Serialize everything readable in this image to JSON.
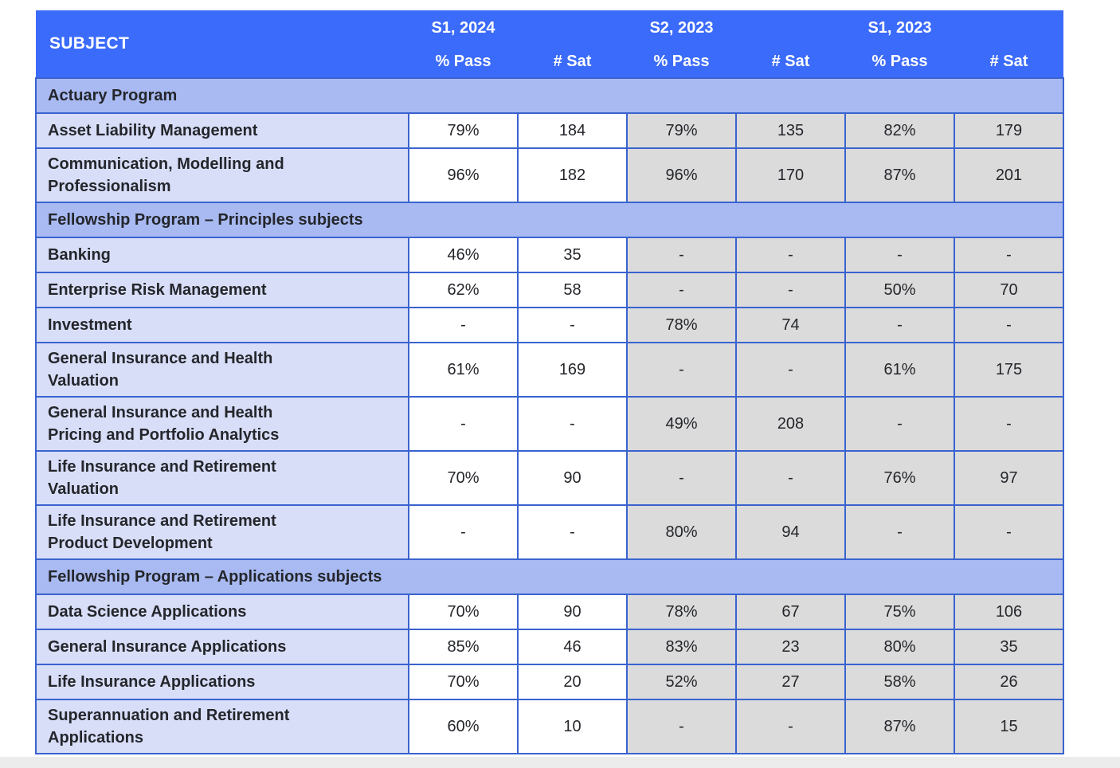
{
  "table": {
    "header": {
      "subject_label": "SUBJECT",
      "groups": [
        {
          "period": "S1, 2024",
          "cols": [
            "% Pass",
            "# Sat"
          ]
        },
        {
          "period": "S2, 2023",
          "cols": [
            "% Pass",
            "# Sat"
          ]
        },
        {
          "period": "S1, 2023",
          "cols": [
            "% Pass",
            "# Sat"
          ]
        }
      ]
    },
    "sections": [
      {
        "title": "Actuary Program",
        "rows": [
          {
            "subject": "Asset Liability Management",
            "values": [
              "79%",
              "184",
              "79%",
              "135",
              "82%",
              "179"
            ]
          },
          {
            "subject": "Communication, Modelling and Professionalism",
            "values": [
              "96%",
              "182",
              "96%",
              "170",
              "87%",
              "201"
            ]
          }
        ]
      },
      {
        "title": "Fellowship Program – Principles subjects",
        "rows": [
          {
            "subject": "Banking",
            "values": [
              "46%",
              "35",
              "-",
              "-",
              "-",
              "-"
            ]
          },
          {
            "subject": "Enterprise Risk Management",
            "values": [
              "62%",
              "58",
              "-",
              "-",
              "50%",
              "70"
            ]
          },
          {
            "subject": "Investment",
            "values": [
              "-",
              "-",
              "78%",
              "74",
              "-",
              "-"
            ]
          },
          {
            "subject": "General Insurance and Health Valuation",
            "values": [
              "61%",
              "169",
              "-",
              "-",
              "61%",
              "175"
            ]
          },
          {
            "subject": "General Insurance and Health Pricing and Portfolio Analytics",
            "values": [
              "-",
              "-",
              "49%",
              "208",
              "-",
              "-"
            ]
          },
          {
            "subject": "Life Insurance and Retirement Valuation",
            "values": [
              "70%",
              "90",
              "-",
              "-",
              "76%",
              "97"
            ]
          },
          {
            "subject": "Life Insurance and Retirement Product Development",
            "values": [
              "-",
              "-",
              "80%",
              "94",
              "-",
              "-"
            ]
          }
        ]
      },
      {
        "title": "Fellowship Program – Applications subjects",
        "rows": [
          {
            "subject": "Data Science Applications",
            "values": [
              "70%",
              "90",
              "78%",
              "67",
              "75%",
              "106"
            ]
          },
          {
            "subject": "General Insurance Applications",
            "values": [
              "85%",
              "46",
              "83%",
              "23",
              "80%",
              "35"
            ]
          },
          {
            "subject": "Life Insurance Applications",
            "values": [
              "70%",
              "20",
              "52%",
              "27",
              "58%",
              "26"
            ]
          },
          {
            "subject": "Superannuation and Retirement Applications",
            "values": [
              "60%",
              "10",
              "-",
              "-",
              "87%",
              "15"
            ]
          }
        ]
      }
    ]
  },
  "colors": {
    "header_bg": "#3B6BFA",
    "header_text": "#FFFFFF",
    "border": "#3A63CF",
    "section_bg": "#A9BAF2",
    "subject_bg": "#D8DEF8",
    "gray_cell": "#DBDBDB",
    "white_cell": "#FFFFFF",
    "text": "#24262B",
    "page_bg": "#FFFFFF",
    "bottom_strip": "#ECECEC"
  },
  "layout_hints": {
    "white_value_columns": [
      0,
      1
    ],
    "gray_value_columns": [
      2,
      3,
      4,
      5
    ]
  }
}
